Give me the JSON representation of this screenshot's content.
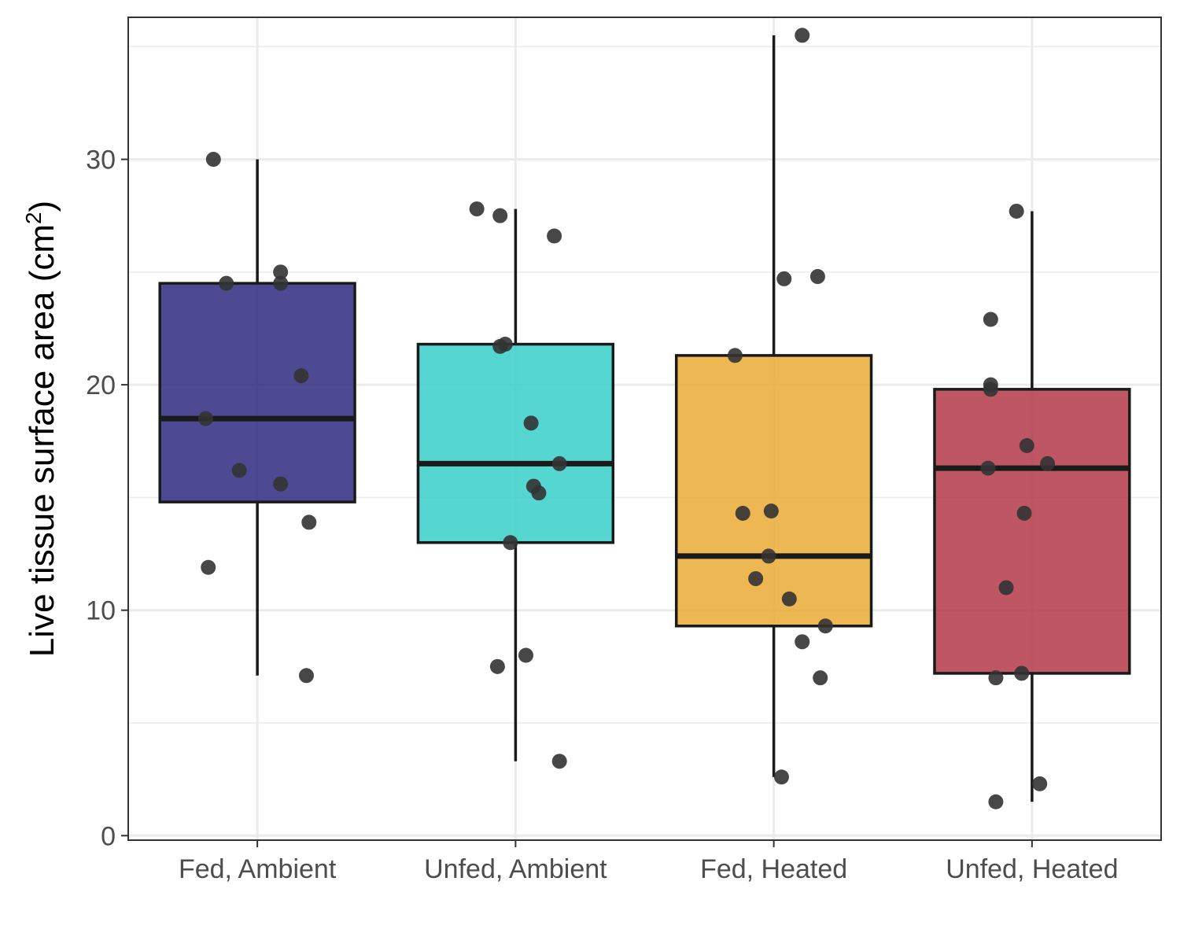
{
  "chart_data": {
    "type": "box",
    "title": "",
    "xlabel": "",
    "ylabel": {
      "main": "Live tissue surface area (cm",
      "sup": "2",
      "close": ")"
    },
    "ylim": [
      -0.2,
      36.3
    ],
    "yticks": [
      0,
      10,
      20,
      30
    ],
    "ytick_labels": [
      "0",
      "10",
      "20",
      "30"
    ],
    "grid": true,
    "legend": "none",
    "categories": [
      "Fed, Ambient",
      "Unfed, Ambient",
      "Fed, Heated",
      "Unfed, Heated"
    ],
    "colors": [
      "#2e2a80",
      "#38cfc8",
      "#eaab36",
      "#b33a48"
    ],
    "point_color": "#333333",
    "series": [
      {
        "category": "Fed, Ambient",
        "box": {
          "lower_whisker": 7.1,
          "q1": 14.8,
          "median": 18.5,
          "q3": 24.5,
          "upper_whisker": 30.0
        },
        "points": [
          [
            -0.17,
            30.0
          ],
          [
            -0.12,
            24.5
          ],
          [
            0.09,
            25.0
          ],
          [
            0.09,
            24.5
          ],
          [
            0.17,
            20.4
          ],
          [
            -0.2,
            18.5
          ],
          [
            -0.07,
            16.2
          ],
          [
            0.09,
            15.6
          ],
          [
            0.2,
            13.9
          ],
          [
            -0.19,
            11.9
          ],
          [
            0.19,
            7.1
          ]
        ]
      },
      {
        "category": "Unfed, Ambient",
        "box": {
          "lower_whisker": 3.3,
          "q1": 13.0,
          "median": 16.5,
          "q3": 21.8,
          "upper_whisker": 27.8
        },
        "points": [
          [
            -0.15,
            27.8
          ],
          [
            -0.06,
            27.5
          ],
          [
            0.15,
            26.6
          ],
          [
            -0.06,
            21.7
          ],
          [
            -0.04,
            21.8
          ],
          [
            0.06,
            18.3
          ],
          [
            0.17,
            16.5
          ],
          [
            0.07,
            15.5
          ],
          [
            0.09,
            15.2
          ],
          [
            -0.02,
            13.0
          ],
          [
            -0.07,
            7.5
          ],
          [
            0.04,
            8.0
          ],
          [
            0.17,
            3.3
          ]
        ]
      },
      {
        "category": "Fed, Heated",
        "box": {
          "lower_whisker": 2.6,
          "q1": 9.3,
          "median": 12.4,
          "q3": 21.3,
          "upper_whisker": 35.5
        },
        "points": [
          [
            0.11,
            35.5
          ],
          [
            0.04,
            24.7
          ],
          [
            0.17,
            24.8
          ],
          [
            -0.15,
            21.3
          ],
          [
            -0.12,
            14.3
          ],
          [
            -0.01,
            14.4
          ],
          [
            -0.02,
            12.4
          ],
          [
            -0.07,
            11.4
          ],
          [
            0.06,
            10.5
          ],
          [
            0.2,
            9.3
          ],
          [
            0.11,
            8.6
          ],
          [
            0.18,
            7.0
          ],
          [
            0.03,
            2.6
          ]
        ]
      },
      {
        "category": "Unfed, Heated",
        "box": {
          "lower_whisker": 1.5,
          "q1": 7.2,
          "median": 16.3,
          "q3": 19.8,
          "upper_whisker": 27.7
        },
        "points": [
          [
            -0.06,
            27.7
          ],
          [
            -0.16,
            22.9
          ],
          [
            -0.16,
            20.0
          ],
          [
            -0.16,
            19.8
          ],
          [
            -0.02,
            17.3
          ],
          [
            -0.17,
            16.3
          ],
          [
            0.06,
            16.5
          ],
          [
            -0.03,
            14.3
          ],
          [
            -0.1,
            11.0
          ],
          [
            -0.14,
            7.0
          ],
          [
            -0.04,
            7.2
          ],
          [
            -0.14,
            1.5
          ],
          [
            0.03,
            2.3
          ]
        ]
      }
    ]
  }
}
